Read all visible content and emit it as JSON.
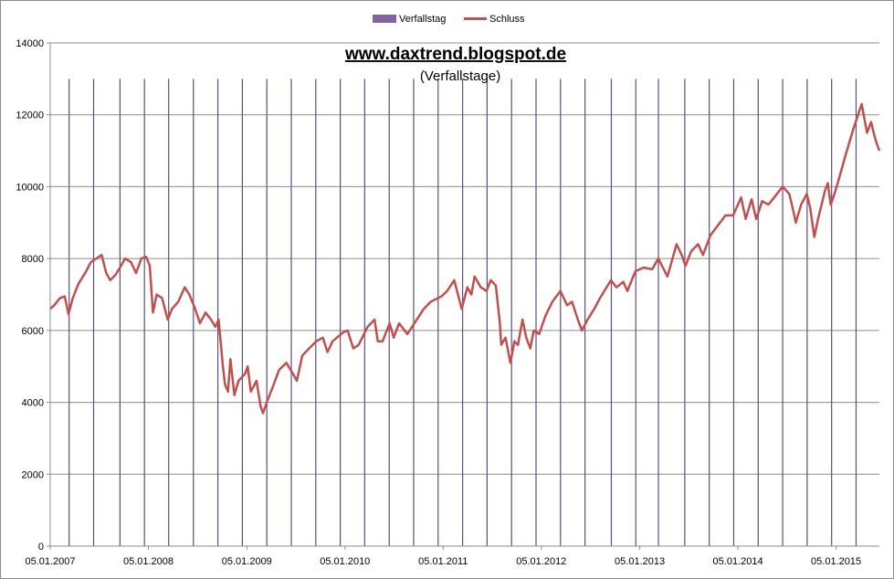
{
  "chart_data": {
    "type": "line",
    "title": "www.daxtrend.blogspot.de",
    "subtitle": "(Verfallstage)",
    "legend": {
      "placement": "top-center",
      "entries": [
        {
          "name": "Verfallstag",
          "color": "#8064a2",
          "symbol": "bar"
        },
        {
          "name": "Schluss",
          "color": "#c0504d",
          "symbol": "line"
        }
      ]
    },
    "x_axis": {
      "type": "date",
      "range": [
        "2007-01-05",
        "2015-06-15"
      ],
      "tick_labels": [
        "05.01.2007",
        "05.01.2008",
        "05.01.2009",
        "05.01.2010",
        "05.01.2011",
        "05.01.2012",
        "05.01.2013",
        "05.01.2014",
        "05.01.2015"
      ],
      "tick_dates": [
        "2007-01-05",
        "2008-01-05",
        "2009-01-05",
        "2010-01-05",
        "2011-01-05",
        "2012-01-05",
        "2013-01-05",
        "2014-01-05",
        "2015-01-05"
      ]
    },
    "y_axis": {
      "range": [
        0,
        14000
      ],
      "ticks": [
        0,
        2000,
        4000,
        6000,
        8000,
        10000,
        12000,
        14000
      ],
      "tick_labels": [
        "0",
        "2000",
        "4000",
        "6000",
        "8000",
        "10000",
        "12000",
        "14000"
      ],
      "grid": true
    },
    "series": [
      {
        "name": "Verfallstag",
        "type": "bar",
        "color": "#5b4f80",
        "value": 13000,
        "dates": [
          "2007-03-16",
          "2007-06-15",
          "2007-09-21",
          "2007-12-21",
          "2008-03-20",
          "2008-06-20",
          "2008-09-19",
          "2008-12-19",
          "2009-03-20",
          "2009-06-19",
          "2009-09-18",
          "2009-12-18",
          "2010-03-19",
          "2010-06-18",
          "2010-09-17",
          "2010-12-17",
          "2011-03-18",
          "2011-06-17",
          "2011-09-16",
          "2011-12-16",
          "2012-03-16",
          "2012-06-15",
          "2012-09-21",
          "2012-12-21",
          "2013-03-15",
          "2013-06-21",
          "2013-09-20",
          "2013-12-20",
          "2014-03-21",
          "2014-06-20",
          "2014-09-19",
          "2014-12-19",
          "2015-03-20"
        ]
      },
      {
        "name": "Schluss",
        "type": "line",
        "color": "#c0504d",
        "points": [
          [
            "2007-01-05",
            6600
          ],
          [
            "2007-01-20",
            6700
          ],
          [
            "2007-02-10",
            6900
          ],
          [
            "2007-02-28",
            6950
          ],
          [
            "2007-03-14",
            6450
          ],
          [
            "2007-03-30",
            6900
          ],
          [
            "2007-04-20",
            7300
          ],
          [
            "2007-05-15",
            7600
          ],
          [
            "2007-06-05",
            7900
          ],
          [
            "2007-06-25",
            8000
          ],
          [
            "2007-07-15",
            8100
          ],
          [
            "2007-08-01",
            7600
          ],
          [
            "2007-08-16",
            7400
          ],
          [
            "2007-09-05",
            7550
          ],
          [
            "2007-09-25",
            7800
          ],
          [
            "2007-10-10",
            8000
          ],
          [
            "2007-11-01",
            7900
          ],
          [
            "2007-11-20",
            7600
          ],
          [
            "2007-12-10",
            8000
          ],
          [
            "2007-12-28",
            8050
          ],
          [
            "2008-01-10",
            7800
          ],
          [
            "2008-01-22",
            6500
          ],
          [
            "2008-02-05",
            7000
          ],
          [
            "2008-02-25",
            6900
          ],
          [
            "2008-03-17",
            6300
          ],
          [
            "2008-04-02",
            6600
          ],
          [
            "2008-04-25",
            6800
          ],
          [
            "2008-05-19",
            7200
          ],
          [
            "2008-06-05",
            7000
          ],
          [
            "2008-06-27",
            6600
          ],
          [
            "2008-07-15",
            6200
          ],
          [
            "2008-08-05",
            6500
          ],
          [
            "2008-08-25",
            6300
          ],
          [
            "2008-09-10",
            6100
          ],
          [
            "2008-09-22",
            6300
          ],
          [
            "2008-10-08",
            5000
          ],
          [
            "2008-10-16",
            4500
          ],
          [
            "2008-10-27",
            4300
          ],
          [
            "2008-11-05",
            5200
          ],
          [
            "2008-11-20",
            4200
          ],
          [
            "2008-12-05",
            4600
          ],
          [
            "2008-12-30",
            4800
          ],
          [
            "2009-01-08",
            5000
          ],
          [
            "2009-01-20",
            4300
          ],
          [
            "2009-02-10",
            4600
          ],
          [
            "2009-02-25",
            3900
          ],
          [
            "2009-03-06",
            3700
          ],
          [
            "2009-03-20",
            4000
          ],
          [
            "2009-04-10",
            4400
          ],
          [
            "2009-05-05",
            4900
          ],
          [
            "2009-06-01",
            5100
          ],
          [
            "2009-06-25",
            4800
          ],
          [
            "2009-07-10",
            4600
          ],
          [
            "2009-07-30",
            5300
          ],
          [
            "2009-08-25",
            5500
          ],
          [
            "2009-09-20",
            5700
          ],
          [
            "2009-10-15",
            5800
          ],
          [
            "2009-11-01",
            5400
          ],
          [
            "2009-11-20",
            5700
          ],
          [
            "2009-12-30",
            5950
          ],
          [
            "2010-01-15",
            6000
          ],
          [
            "2010-02-05",
            5500
          ],
          [
            "2010-02-25",
            5600
          ],
          [
            "2010-03-30",
            6100
          ],
          [
            "2010-04-25",
            6300
          ],
          [
            "2010-05-07",
            5700
          ],
          [
            "2010-05-25",
            5700
          ],
          [
            "2010-06-20",
            6200
          ],
          [
            "2010-07-05",
            5800
          ],
          [
            "2010-07-25",
            6200
          ],
          [
            "2010-08-25",
            5900
          ],
          [
            "2010-09-20",
            6200
          ],
          [
            "2010-10-25",
            6600
          ],
          [
            "2010-11-20",
            6800
          ],
          [
            "2010-12-30",
            6950
          ],
          [
            "2011-01-20",
            7100
          ],
          [
            "2011-02-15",
            7400
          ],
          [
            "2011-03-15",
            6600
          ],
          [
            "2011-04-05",
            7200
          ],
          [
            "2011-04-20",
            7000
          ],
          [
            "2011-05-02",
            7500
          ],
          [
            "2011-05-25",
            7200
          ],
          [
            "2011-06-15",
            7100
          ],
          [
            "2011-07-01",
            7400
          ],
          [
            "2011-07-20",
            7250
          ],
          [
            "2011-08-04",
            6200
          ],
          [
            "2011-08-09",
            5600
          ],
          [
            "2011-08-25",
            5800
          ],
          [
            "2011-09-12",
            5100
          ],
          [
            "2011-09-27",
            5700
          ],
          [
            "2011-10-10",
            5600
          ],
          [
            "2011-10-27",
            6300
          ],
          [
            "2011-11-10",
            5800
          ],
          [
            "2011-11-25",
            5500
          ],
          [
            "2011-12-08",
            6000
          ],
          [
            "2011-12-28",
            5900
          ],
          [
            "2012-01-20",
            6400
          ],
          [
            "2012-02-15",
            6800
          ],
          [
            "2012-03-16",
            7100
          ],
          [
            "2012-04-10",
            6700
          ],
          [
            "2012-04-28",
            6800
          ],
          [
            "2012-05-20",
            6300
          ],
          [
            "2012-06-04",
            6000
          ],
          [
            "2012-06-25",
            6300
          ],
          [
            "2012-07-20",
            6600
          ],
          [
            "2012-08-10",
            6900
          ],
          [
            "2012-09-20",
            7400
          ],
          [
            "2012-10-10",
            7200
          ],
          [
            "2012-11-05",
            7350
          ],
          [
            "2012-11-20",
            7100
          ],
          [
            "2012-12-20",
            7650
          ],
          [
            "2013-01-20",
            7750
          ],
          [
            "2013-02-20",
            7700
          ],
          [
            "2013-03-15",
            8000
          ],
          [
            "2013-04-18",
            7500
          ],
          [
            "2013-05-22",
            8400
          ],
          [
            "2013-06-10",
            8100
          ],
          [
            "2013-06-24",
            7800
          ],
          [
            "2013-07-15",
            8200
          ],
          [
            "2013-08-10",
            8400
          ],
          [
            "2013-08-28",
            8100
          ],
          [
            "2013-09-25",
            8650
          ],
          [
            "2013-10-20",
            8900
          ],
          [
            "2013-11-20",
            9200
          ],
          [
            "2013-12-18",
            9200
          ],
          [
            "2014-01-17",
            9700
          ],
          [
            "2014-02-03",
            9100
          ],
          [
            "2014-02-25",
            9650
          ],
          [
            "2014-03-14",
            9100
          ],
          [
            "2014-04-05",
            9600
          ],
          [
            "2014-04-28",
            9500
          ],
          [
            "2014-05-20",
            9700
          ],
          [
            "2014-06-20",
            10000
          ],
          [
            "2014-07-15",
            9800
          ],
          [
            "2014-07-31",
            9300
          ],
          [
            "2014-08-08",
            9000
          ],
          [
            "2014-08-28",
            9500
          ],
          [
            "2014-09-18",
            9800
          ],
          [
            "2014-10-01",
            9400
          ],
          [
            "2014-10-16",
            8600
          ],
          [
            "2014-10-30",
            9100
          ],
          [
            "2014-11-25",
            9900
          ],
          [
            "2014-12-05",
            10100
          ],
          [
            "2014-12-16",
            9500
          ],
          [
            "2014-12-30",
            9800
          ],
          [
            "2015-01-15",
            10200
          ],
          [
            "2015-02-10",
            10900
          ],
          [
            "2015-03-10",
            11600
          ],
          [
            "2015-04-10",
            12300
          ],
          [
            "2015-04-30",
            11500
          ],
          [
            "2015-05-15",
            11800
          ],
          [
            "2015-05-28",
            11400
          ],
          [
            "2015-06-05",
            11200
          ],
          [
            "2015-06-15",
            11000
          ]
        ]
      }
    ]
  }
}
